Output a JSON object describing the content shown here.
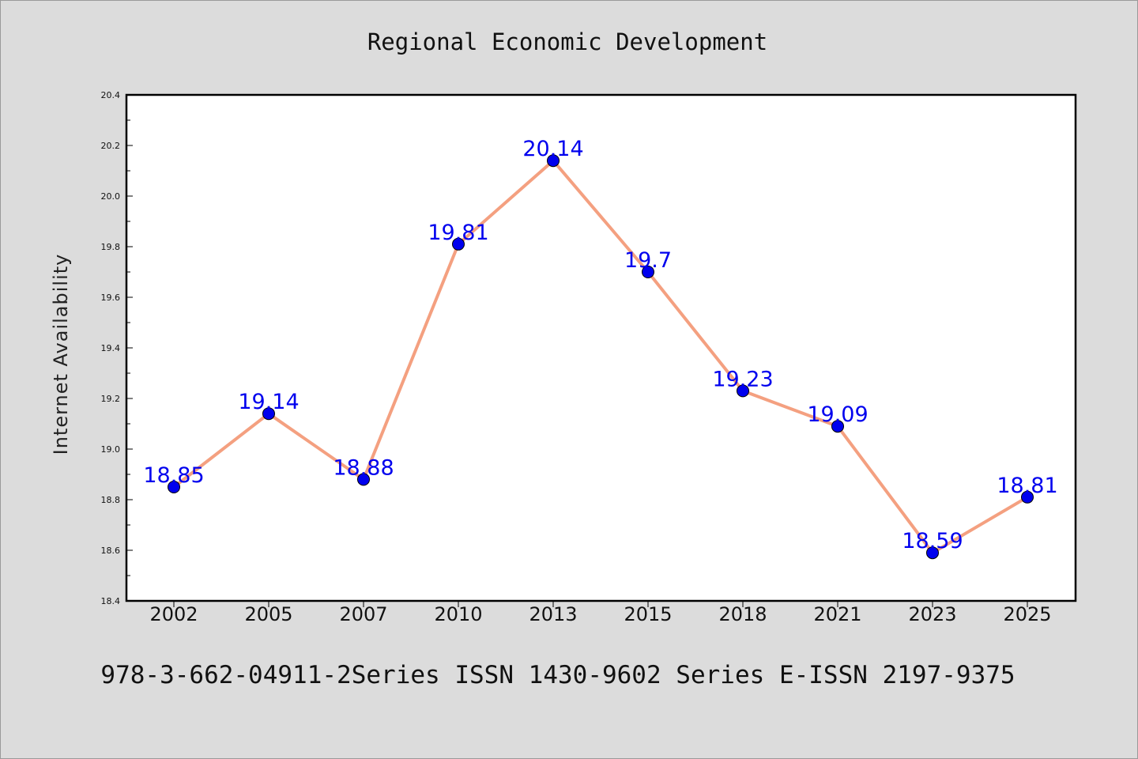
{
  "chart_data": {
    "type": "line",
    "title": "Regional Economic Development",
    "xlabel": "",
    "ylabel": "Internet Availability",
    "categories": [
      "2002",
      "2005",
      "2007",
      "2010",
      "2013",
      "2015",
      "2018",
      "2021",
      "2023",
      "2025"
    ],
    "series": [
      {
        "values": [
          18.85,
          19.14,
          18.88,
          19.81,
          20.14,
          19.7,
          19.23,
          19.09,
          18.59,
          18.81
        ],
        "labels": [
          "18.85",
          "19.14",
          "18.88",
          "19.81",
          "20.14",
          "19.7",
          "19.23",
          "19.09",
          "18.59",
          "18.81"
        ],
        "line_color": "#f4a080",
        "marker_color": "#0000ee"
      }
    ],
    "ylim": [
      18.4,
      20.4
    ],
    "yticks": [
      "18.4",
      "18.6",
      "18.8",
      "19.0",
      "19.2",
      "19.4",
      "19.6",
      "19.8",
      "20.0",
      "20.2",
      "20.4"
    ],
    "grid": false,
    "legend": "none"
  },
  "footer": {
    "text": "978-3-662-04911-2Series ISSN 1430-9602 Series E-ISSN 2197-9375"
  }
}
